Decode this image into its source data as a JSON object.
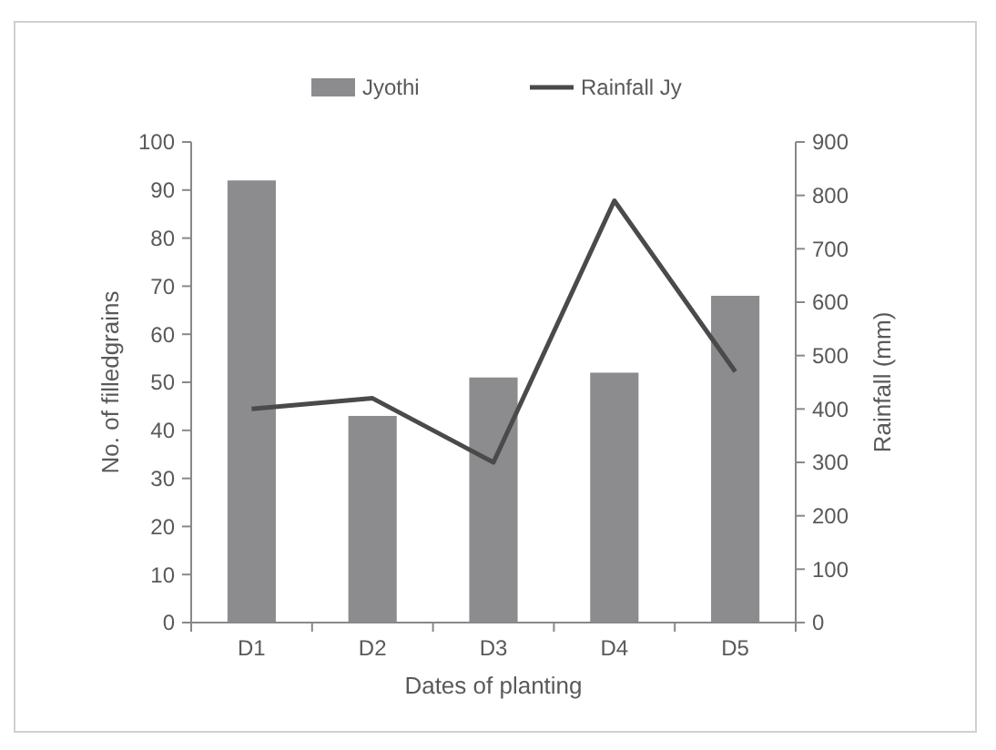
{
  "chart_data": {
    "type": "bar",
    "categories": [
      "D1",
      "D2",
      "D3",
      "D4",
      "D5"
    ],
    "xlabel": "Dates of planting",
    "ylabel": "No. of filledgrains",
    "y2label": "Rainfall (mm)",
    "series": [
      {
        "name": "Jyothi",
        "color": "#8c8c8e",
        "values": [
          92,
          43,
          51,
          52,
          68
        ]
      },
      {
        "name": "Rainfall Jy",
        "type": "line",
        "axis": "y2",
        "color": "#4a4a4a",
        "values": [
          400,
          420,
          300,
          790,
          470
        ]
      }
    ],
    "ylim": [
      0,
      100
    ],
    "yticks": [
      0,
      10,
      20,
      30,
      40,
      50,
      60,
      70,
      80,
      90,
      100
    ],
    "y2lim": [
      0,
      900
    ],
    "y2ticks": [
      0,
      100,
      200,
      300,
      400,
      500,
      600,
      700,
      800,
      900
    ],
    "legend": "top",
    "grid": false
  }
}
